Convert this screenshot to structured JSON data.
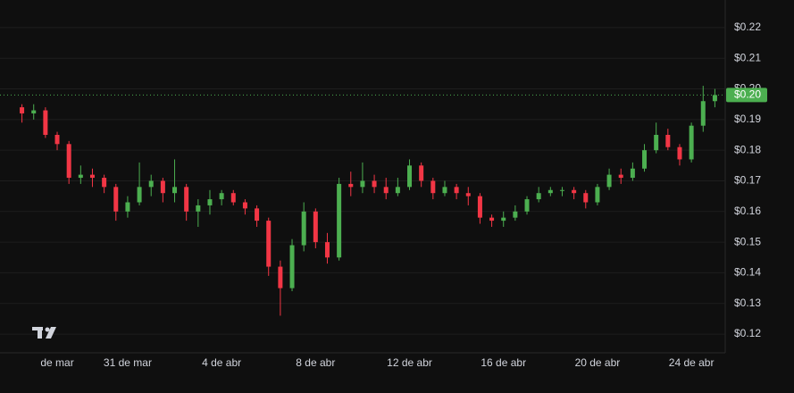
{
  "chart_data": {
    "type": "candlestick",
    "categories": [
      null,
      null,
      null,
      "de mar",
      null,
      null,
      null,
      null,
      null,
      "31 de mar",
      null,
      null,
      null,
      null,
      null,
      null,
      null,
      "4 de abr",
      null,
      null,
      null,
      null,
      null,
      null,
      null,
      "8 de abr",
      null,
      null,
      null,
      null,
      null,
      null,
      null,
      "12 de abr",
      null,
      null,
      null,
      null,
      null,
      null,
      null,
      "16 de abr",
      null,
      null,
      null,
      null,
      null,
      null,
      null,
      "20 de abr",
      null,
      null,
      null,
      null,
      null,
      null,
      null,
      "24 de abr",
      null,
      null
    ],
    "open": [
      0.194,
      0.192,
      0.193,
      0.185,
      0.182,
      0.171,
      0.172,
      0.171,
      0.168,
      0.16,
      0.163,
      0.168,
      0.17,
      0.166,
      0.168,
      0.16,
      0.162,
      0.164,
      0.166,
      0.163,
      0.161,
      0.157,
      0.142,
      0.135,
      0.149,
      0.16,
      0.15,
      0.145,
      0.169,
      0.168,
      0.17,
      0.168,
      0.166,
      0.168,
      0.175,
      0.17,
      0.166,
      0.168,
      0.166,
      0.165,
      0.158,
      0.157,
      0.158,
      0.16,
      0.164,
      0.166,
      0.167,
      0.167,
      0.166,
      0.163,
      0.168,
      0.172,
      0.171,
      0.174,
      0.18,
      0.185,
      0.181,
      0.177,
      0.188,
      0.196
    ],
    "high": [
      0.195,
      0.195,
      0.194,
      0.186,
      0.183,
      0.175,
      0.174,
      0.172,
      0.169,
      0.165,
      0.176,
      0.172,
      0.171,
      0.177,
      0.169,
      0.164,
      0.167,
      0.167,
      0.167,
      0.164,
      0.162,
      0.158,
      0.144,
      0.151,
      0.163,
      0.161,
      0.153,
      0.171,
      0.173,
      0.176,
      0.172,
      0.171,
      0.171,
      0.177,
      0.176,
      0.171,
      0.17,
      0.169,
      0.168,
      0.166,
      0.159,
      0.16,
      0.162,
      0.165,
      0.168,
      0.168,
      0.168,
      0.168,
      0.167,
      0.169,
      0.174,
      0.174,
      0.176,
      0.182,
      0.189,
      0.187,
      0.182,
      0.189,
      0.201,
      0.2
    ],
    "low": [
      0.189,
      0.19,
      0.184,
      0.18,
      0.169,
      0.169,
      0.168,
      0.166,
      0.157,
      0.158,
      0.162,
      0.165,
      0.163,
      0.163,
      0.157,
      0.155,
      0.159,
      0.162,
      0.162,
      0.159,
      0.155,
      0.139,
      0.126,
      0.134,
      0.147,
      0.148,
      0.143,
      0.144,
      0.165,
      0.166,
      0.166,
      0.164,
      0.165,
      0.167,
      0.168,
      0.164,
      0.165,
      0.164,
      0.162,
      0.156,
      0.155,
      0.155,
      0.157,
      0.159,
      0.163,
      0.165,
      0.165,
      0.164,
      0.161,
      0.162,
      0.167,
      0.169,
      0.17,
      0.173,
      0.179,
      0.18,
      0.175,
      0.176,
      0.186,
      0.194
    ],
    "close": [
      0.192,
      0.193,
      0.185,
      0.182,
      0.171,
      0.172,
      0.171,
      0.168,
      0.16,
      0.163,
      0.168,
      0.17,
      0.166,
      0.168,
      0.16,
      0.162,
      0.164,
      0.166,
      0.163,
      0.161,
      0.157,
      0.142,
      0.135,
      0.149,
      0.16,
      0.15,
      0.145,
      0.169,
      0.168,
      0.17,
      0.168,
      0.166,
      0.168,
      0.175,
      0.17,
      0.166,
      0.168,
      0.166,
      0.165,
      0.158,
      0.157,
      0.158,
      0.16,
      0.164,
      0.166,
      0.167,
      0.167,
      0.166,
      0.163,
      0.168,
      0.172,
      0.171,
      0.174,
      0.18,
      0.185,
      0.181,
      0.177,
      0.188,
      0.196,
      0.198
    ],
    "up_color": "#4caf50",
    "down_color": "#f23645",
    "last_price": {
      "value": 0.198,
      "label": "$0.20"
    },
    "ylim": [
      0.1139,
      0.229
    ],
    "yticks": [
      {
        "value": 0.12,
        "label": "$0.12"
      },
      {
        "value": 0.13,
        "label": "$0.13"
      },
      {
        "value": 0.14,
        "label": "$0.14"
      },
      {
        "value": 0.15,
        "label": "$0.15"
      },
      {
        "value": 0.16,
        "label": "$0.16"
      },
      {
        "value": 0.17,
        "label": "$0.17"
      },
      {
        "value": 0.18,
        "label": "$0.18"
      },
      {
        "value": 0.19,
        "label": "$0.19"
      },
      {
        "value": 0.2,
        "label": "$0.20"
      },
      {
        "value": 0.21,
        "label": "$0.21"
      },
      {
        "value": 0.22,
        "label": "$0.22"
      }
    ],
    "grid": true
  }
}
